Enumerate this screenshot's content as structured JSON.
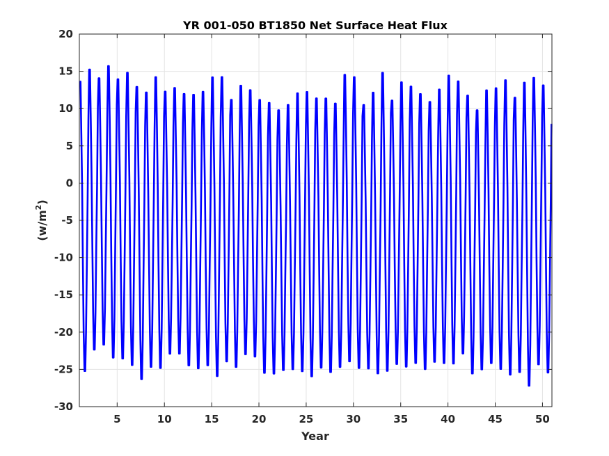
{
  "chart_data": {
    "type": "line",
    "title": "YR 001-050 BT1850 Net Surface Heat Flux",
    "xlabel": "Year",
    "ylabel_prefix": "(w/m",
    "ylabel_sup": "2",
    "ylabel_suffix": ")",
    "xlim": [
      1,
      51
    ],
    "ylim": [
      -30,
      20
    ],
    "xticks": [
      5,
      10,
      15,
      20,
      25,
      30,
      35,
      40,
      45,
      50
    ],
    "yticks": [
      -30,
      -25,
      -20,
      -15,
      -10,
      -5,
      0,
      5,
      10,
      15,
      20
    ],
    "grid": true,
    "line_color": "#0000ff",
    "samples_per_year": 12,
    "series": [
      {
        "name": "",
        "annual_max": [
          14.3,
          15.9,
          14.7,
          16.4,
          14.6,
          15.5,
          13.6,
          12.8,
          14.9,
          12.9,
          13.4,
          12.6,
          12.5,
          12.9,
          14.9,
          14.9,
          11.8,
          13.7,
          13.1,
          11.8,
          11.4,
          10.4,
          11.1,
          12.7,
          12.9,
          12.0,
          12.0,
          11.3,
          15.2,
          14.9,
          11.1,
          12.8,
          15.5,
          11.7,
          14.2,
          13.6,
          12.6,
          11.5,
          13.2,
          15.1,
          14.3,
          12.4,
          10.4,
          13.1,
          13.4,
          14.5,
          12.1,
          14.2,
          14.8,
          13.8
        ],
        "annual_min": [
          -25.9,
          -23.0,
          -22.3,
          -24.1,
          -24.2,
          -25.1,
          -27.0,
          -25.3,
          -25.5,
          -23.5,
          -23.5,
          -25.1,
          -25.5,
          -25.1,
          -26.6,
          -24.6,
          -25.3,
          -23.6,
          -23.9,
          -26.1,
          -26.2,
          -25.7,
          -25.6,
          -25.9,
          -26.6,
          -25.4,
          -26.0,
          -25.3,
          -24.6,
          -25.5,
          -25.5,
          -26.2,
          -25.9,
          -24.9,
          -25.3,
          -24.8,
          -25.6,
          -24.6,
          -24.8,
          -24.9,
          -23.5,
          -26.2,
          -25.6,
          -24.8,
          -25.6,
          -26.4,
          -26.0,
          -27.9,
          -25.0,
          -26.1
        ]
      }
    ]
  }
}
